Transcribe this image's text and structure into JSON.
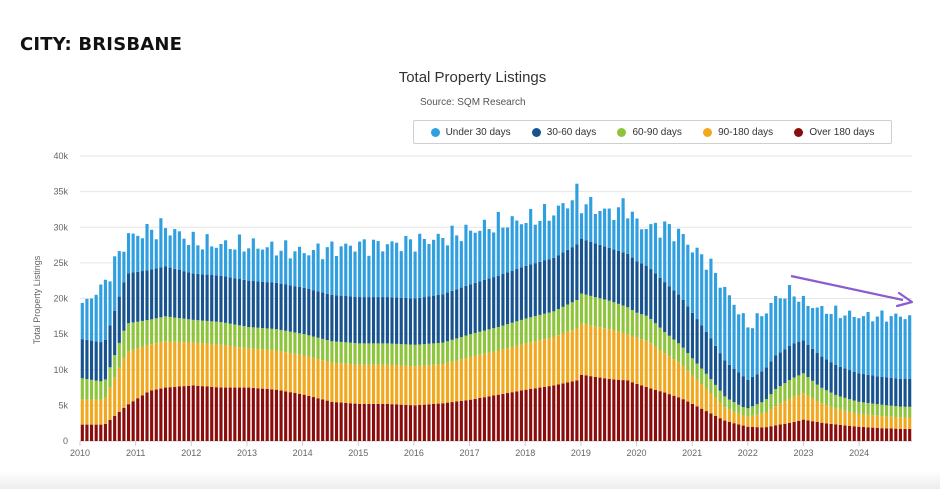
{
  "heading": "CITY: BRISBANE",
  "chart_data": {
    "type": "bar",
    "stacked": true,
    "title": "Total Property Listings",
    "subtitle": "Source: SQM Research",
    "ylabel": "Total Property Listings",
    "xlabel": "",
    "ylim": [
      0,
      40000
    ],
    "yticks": [
      0,
      5000,
      10000,
      15000,
      20000,
      25000,
      30000,
      35000,
      40000
    ],
    "ytick_labels": [
      "0",
      "5k",
      "10k",
      "15k",
      "20k",
      "25k",
      "30k",
      "35k",
      "40k"
    ],
    "xlim": [
      2010,
      2024.95
    ],
    "xticks": [
      2010,
      2011,
      2012,
      2013,
      2014,
      2015,
      2016,
      2017,
      2018,
      2019,
      2020,
      2021,
      2022,
      2023,
      2024
    ],
    "grid": true,
    "legend_position": "top-right",
    "period": "monthly",
    "annotation": "purple-downward-trend-arrow",
    "series": [
      {
        "name": "Under 30 days",
        "color": "#2f9fe0"
      },
      {
        "name": "30-60 days",
        "color": "#16538f"
      },
      {
        "name": "60-90 days",
        "color": "#8dc43b"
      },
      {
        "name": "90-180 days",
        "color": "#f2a81d"
      },
      {
        "name": "Over 180 days",
        "color": "#8b0c0c"
      }
    ],
    "anchors": {
      "dates": [
        2010.0,
        2010.4,
        2010.8,
        2011.2,
        2011.5,
        2012.0,
        2012.5,
        2013.0,
        2013.5,
        2014.0,
        2014.5,
        2015.0,
        2015.5,
        2016.0,
        2016.5,
        2017.0,
        2017.5,
        2018.0,
        2018.5,
        2018.92,
        2019.0,
        2019.5,
        2019.83,
        2020.0,
        2020.2,
        2020.5,
        2020.8,
        2021.0,
        2021.3,
        2021.6,
        2021.9,
        2022.0,
        2022.3,
        2022.5,
        2022.8,
        2023.0,
        2023.3,
        2023.6,
        2024.0,
        2024.4,
        2024.8
      ],
      "total": [
        19000,
        22000,
        28500,
        29500,
        30000,
        28000,
        27500,
        27500,
        27000,
        26500,
        27000,
        27500,
        27500,
        28000,
        28500,
        29500,
        30500,
        31000,
        32000,
        34500,
        33500,
        32000,
        33000,
        30500,
        30000,
        30000,
        29000,
        27000,
        25000,
        21000,
        17500,
        16000,
        18000,
        20000,
        21000,
        19500,
        18500,
        18000,
        17500,
        17500,
        17500
      ],
      "over_180": [
        2300,
        2300,
        5000,
        7000,
        7500,
        7800,
        7500,
        7500,
        7200,
        6500,
        5500,
        5200,
        5200,
        5000,
        5300,
        5800,
        6500,
        7200,
        7800,
        8500,
        9300,
        8700,
        8500,
        8000,
        7500,
        6800,
        6000,
        5200,
        4000,
        2800,
        2200,
        2000,
        1900,
        2200,
        2600,
        3000,
        2600,
        2300,
        2000,
        1800,
        1700
      ],
      "d90_180": [
        3500,
        3500,
        7500,
        6500,
        6500,
        6000,
        6000,
        5500,
        5500,
        5500,
        5500,
        5500,
        5500,
        5500,
        5500,
        6000,
        6200,
        6500,
        6800,
        7300,
        7200,
        7000,
        6500,
        6500,
        6500,
        5500,
        4800,
        4000,
        3000,
        1800,
        1400,
        1400,
        2000,
        2700,
        3500,
        3700,
        2800,
        2200,
        1800,
        1700,
        1600
      ],
      "d60_90": [
        3000,
        2500,
        4000,
        3500,
        3500,
        3200,
        3200,
        3000,
        3000,
        3000,
        3000,
        3000,
        3000,
        3000,
        3000,
        3200,
        3300,
        3500,
        3600,
        4000,
        4200,
        4000,
        3800,
        3500,
        3500,
        3000,
        2600,
        2400,
        2000,
        1500,
        1200,
        1200,
        1700,
        2400,
        2700,
        2800,
        2200,
        1900,
        1700,
        1600,
        1500
      ],
      "d30_60": [
        5500,
        5500,
        7000,
        7000,
        7000,
        6500,
        6500,
        6500,
        6500,
        6500,
        6500,
        6500,
        6500,
        6500,
        6800,
        7000,
        7200,
        7400,
        7500,
        7800,
        7700,
        7400,
        7500,
        7200,
        7000,
        7000,
        6800,
        6400,
        5800,
        5000,
        4400,
        4000,
        4400,
        4700,
        4800,
        4600,
        4400,
        4200,
        4000,
        3900,
        3900
      ]
    }
  }
}
